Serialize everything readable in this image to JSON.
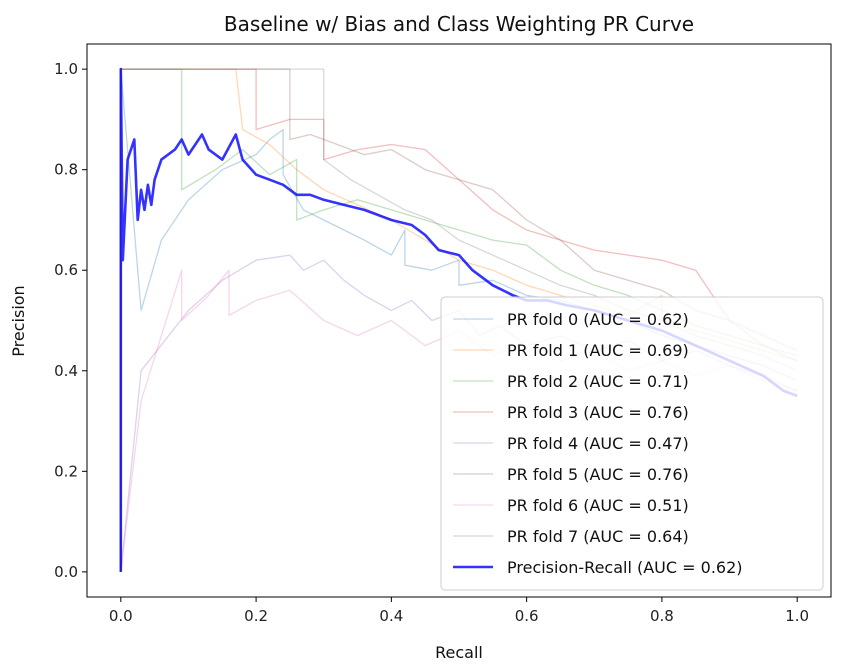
{
  "chart_data": {
    "type": "line",
    "title": "Baseline w/ Bias and Class Weighting PR Curve",
    "xlabel": "Recall",
    "ylabel": "Precision",
    "xlim": [
      -0.05,
      1.05
    ],
    "ylim": [
      -0.05,
      1.05
    ],
    "xticks": [
      0.0,
      0.2,
      0.4,
      0.6,
      0.8,
      1.0
    ],
    "yticks": [
      0.0,
      0.2,
      0.4,
      0.6,
      0.8,
      1.0
    ],
    "xtick_labels": [
      "0.0",
      "0.2",
      "0.4",
      "0.6",
      "0.8",
      "1.0"
    ],
    "ytick_labels": [
      "0.0",
      "0.2",
      "0.4",
      "0.6",
      "0.8",
      "1.0"
    ],
    "grid": false,
    "legend_position": "lower-right",
    "series": [
      {
        "name": "PR fold 0 (AUC = 0.62)",
        "color": "#1f77b4",
        "opacity": 0.3,
        "width": 1.3,
        "x": [
          0,
          0,
          0.03,
          0.06,
          0.1,
          0.15,
          0.2,
          0.22,
          0.24,
          0.24,
          0.27,
          0.3,
          0.33,
          0.36,
          0.4,
          0.42,
          0.42,
          0.46,
          0.5,
          0.5,
          0.55,
          0.6,
          0.65,
          0.7,
          0.75,
          0.8,
          0.85,
          0.9,
          0.95,
          1.0
        ],
        "y": [
          0,
          1.0,
          0.52,
          0.66,
          0.74,
          0.8,
          0.83,
          0.86,
          0.88,
          0.79,
          0.72,
          0.7,
          0.68,
          0.66,
          0.63,
          0.68,
          0.61,
          0.6,
          0.62,
          0.57,
          0.58,
          0.55,
          0.54,
          0.52,
          0.5,
          0.47,
          0.45,
          0.43,
          0.41,
          0.38
        ]
      },
      {
        "name": "PR fold 1 (AUC = 0.69)",
        "color": "#ff7f0e",
        "opacity": 0.3,
        "width": 1.3,
        "x": [
          0,
          0,
          0.17,
          0.18,
          0.22,
          0.26,
          0.3,
          0.35,
          0.4,
          0.45,
          0.5,
          0.55,
          0.6,
          0.65,
          0.7,
          0.75,
          0.8,
          0.8,
          0.85,
          0.9,
          0.95,
          1.0
        ],
        "y": [
          0,
          1.0,
          1.0,
          0.88,
          0.85,
          0.8,
          0.76,
          0.73,
          0.7,
          0.66,
          0.62,
          0.6,
          0.57,
          0.55,
          0.53,
          0.51,
          0.55,
          0.5,
          0.48,
          0.46,
          0.44,
          0.42
        ]
      },
      {
        "name": "PR fold 2 (AUC = 0.71)",
        "color": "#2ca02c",
        "opacity": 0.3,
        "width": 1.3,
        "x": [
          0,
          0,
          0.09,
          0.09,
          0.14,
          0.18,
          0.22,
          0.26,
          0.26,
          0.3,
          0.35,
          0.4,
          0.45,
          0.5,
          0.55,
          0.6,
          0.65,
          0.7,
          0.75,
          0.8,
          0.85,
          0.9,
          0.95,
          1.0
        ],
        "y": [
          0,
          1.0,
          1.0,
          0.76,
          0.8,
          0.84,
          0.79,
          0.82,
          0.7,
          0.72,
          0.74,
          0.72,
          0.7,
          0.68,
          0.66,
          0.65,
          0.6,
          0.57,
          0.55,
          0.52,
          0.49,
          0.47,
          0.45,
          0.43
        ]
      },
      {
        "name": "PR fold 3 (AUC = 0.76)",
        "color": "#d62728",
        "opacity": 0.3,
        "width": 1.3,
        "x": [
          0,
          0,
          0.2,
          0.2,
          0.25,
          0.3,
          0.3,
          0.35,
          0.4,
          0.45,
          0.5,
          0.55,
          0.6,
          0.65,
          0.7,
          0.75,
          0.8,
          0.85,
          0.88,
          0.9,
          0.95,
          1.0
        ],
        "y": [
          0,
          1.0,
          1.0,
          0.88,
          0.9,
          0.9,
          0.82,
          0.84,
          0.85,
          0.84,
          0.78,
          0.72,
          0.68,
          0.66,
          0.64,
          0.63,
          0.62,
          0.6,
          0.54,
          0.5,
          0.47,
          0.44
        ]
      },
      {
        "name": "PR fold 4 (AUC = 0.47)",
        "color": "#9467bd",
        "opacity": 0.3,
        "width": 1.3,
        "x": [
          0,
          0.03,
          0.1,
          0.15,
          0.2,
          0.25,
          0.27,
          0.3,
          0.33,
          0.36,
          0.4,
          0.43,
          0.46,
          0.5,
          0.53,
          0.56,
          0.6,
          0.65,
          0.7,
          0.75,
          0.8,
          0.85,
          0.9,
          0.95,
          1.0
        ],
        "y": [
          0,
          0.4,
          0.52,
          0.58,
          0.62,
          0.63,
          0.6,
          0.62,
          0.58,
          0.55,
          0.52,
          0.54,
          0.5,
          0.52,
          0.47,
          0.49,
          0.45,
          0.47,
          0.44,
          0.46,
          0.42,
          0.44,
          0.41,
          0.39,
          0.36
        ]
      },
      {
        "name": "PR fold 5 (AUC = 0.76)",
        "color": "#8c564b",
        "opacity": 0.3,
        "width": 1.3,
        "x": [
          0,
          0,
          0.25,
          0.25,
          0.28,
          0.32,
          0.36,
          0.4,
          0.45,
          0.5,
          0.55,
          0.6,
          0.65,
          0.7,
          0.75,
          0.8,
          0.85,
          0.9,
          0.95,
          1.0
        ],
        "y": [
          0,
          1.0,
          1.0,
          0.86,
          0.87,
          0.85,
          0.83,
          0.84,
          0.8,
          0.78,
          0.76,
          0.7,
          0.66,
          0.6,
          0.58,
          0.56,
          0.52,
          0.5,
          0.45,
          0.42
        ]
      },
      {
        "name": "PR fold 6 (AUC = 0.51)",
        "color": "#e377c2",
        "opacity": 0.3,
        "width": 1.3,
        "x": [
          0,
          0.03,
          0.09,
          0.09,
          0.13,
          0.16,
          0.16,
          0.2,
          0.25,
          0.3,
          0.35,
          0.4,
          0.45,
          0.5,
          0.55,
          0.6,
          0.65,
          0.7,
          0.75,
          0.8,
          0.85,
          0.9,
          0.95,
          1.0
        ],
        "y": [
          0,
          0.34,
          0.6,
          0.5,
          0.55,
          0.6,
          0.51,
          0.54,
          0.56,
          0.5,
          0.47,
          0.5,
          0.45,
          0.48,
          0.43,
          0.46,
          0.42,
          0.44,
          0.4,
          0.42,
          0.39,
          0.41,
          0.38,
          0.36
        ]
      },
      {
        "name": "PR fold 7 (AUC = 0.64)",
        "color": "#7f7f7f",
        "opacity": 0.3,
        "width": 1.3,
        "x": [
          0,
          0,
          0.3,
          0.3,
          0.34,
          0.38,
          0.42,
          0.46,
          0.5,
          0.55,
          0.6,
          0.65,
          0.7,
          0.75,
          0.8,
          0.85,
          0.9,
          0.95,
          1.0
        ],
        "y": [
          0,
          1.0,
          1.0,
          0.82,
          0.78,
          0.75,
          0.72,
          0.7,
          0.66,
          0.63,
          0.6,
          0.57,
          0.55,
          0.52,
          0.5,
          0.47,
          0.45,
          0.43,
          0.4
        ]
      },
      {
        "name": "Precision-Recall (AUC = 0.62)",
        "color": "#0000ff",
        "opacity": 0.8,
        "width": 2.6,
        "x": [
          0,
          0,
          0.003,
          0.01,
          0.02,
          0.025,
          0.03,
          0.035,
          0.04,
          0.045,
          0.05,
          0.06,
          0.08,
          0.09,
          0.1,
          0.12,
          0.13,
          0.15,
          0.17,
          0.18,
          0.2,
          0.22,
          0.24,
          0.26,
          0.28,
          0.3,
          0.33,
          0.36,
          0.38,
          0.4,
          0.43,
          0.45,
          0.47,
          0.5,
          0.52,
          0.55,
          0.58,
          0.6,
          0.63,
          0.66,
          0.7,
          0.75,
          0.8,
          0.85,
          0.9,
          0.95,
          0.98,
          1.0
        ],
        "y": [
          0,
          1.0,
          0.62,
          0.82,
          0.86,
          0.7,
          0.76,
          0.72,
          0.77,
          0.73,
          0.78,
          0.82,
          0.84,
          0.86,
          0.83,
          0.87,
          0.84,
          0.82,
          0.87,
          0.82,
          0.79,
          0.78,
          0.77,
          0.75,
          0.75,
          0.74,
          0.73,
          0.72,
          0.71,
          0.7,
          0.69,
          0.67,
          0.64,
          0.63,
          0.6,
          0.57,
          0.55,
          0.54,
          0.54,
          0.53,
          0.52,
          0.5,
          0.48,
          0.45,
          0.42,
          0.39,
          0.36,
          0.35
        ]
      }
    ]
  }
}
